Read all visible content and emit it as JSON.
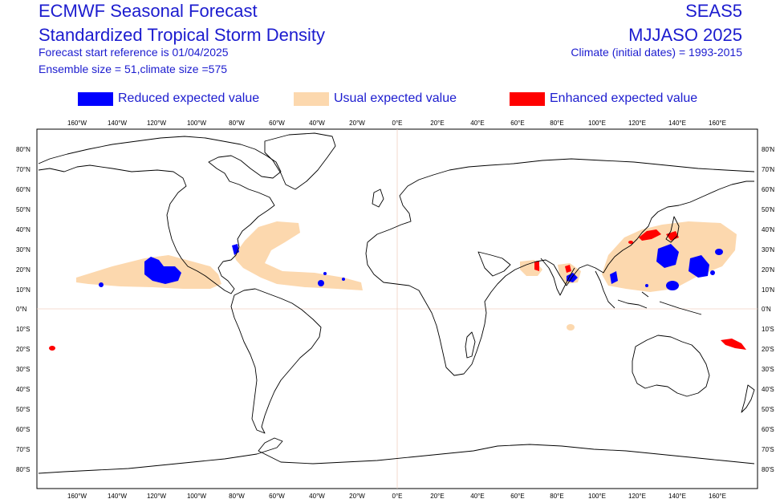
{
  "header": {
    "title_line1": "ECMWF Seasonal Forecast",
    "title_line2": "Standardized Tropical Storm Density",
    "forecast_start": "Forecast start reference is 01/04/2025",
    "ensemble": "Ensemble size = 51,climate size =575",
    "system": "SEAS5",
    "period": "MJJASO 2025",
    "climate": "Climate (initial dates) = 1993-2015"
  },
  "legend": [
    {
      "label": "Reduced expected value",
      "color": "#0000ff"
    },
    {
      "label": "Usual expected value",
      "color": "#fcd8ae"
    },
    {
      "label": "Enhanced expected value",
      "color": "#ff0000"
    }
  ],
  "axes": {
    "lon_labels": [
      "160°W",
      "140°W",
      "120°W",
      "100°W",
      "80°W",
      "60°W",
      "40°W",
      "20°W",
      "0°E",
      "20°E",
      "40°E",
      "60°E",
      "80°E",
      "100°E",
      "120°E",
      "140°E",
      "160°E"
    ],
    "lat_labels_left": [
      "80°N",
      "70°N",
      "60°N",
      "50°N",
      "40°N",
      "30°N",
      "20°N",
      "10°N",
      "0°N",
      "10°S",
      "20°S",
      "30°S",
      "40°S",
      "50°S",
      "60°S",
      "70°S",
      "80°S"
    ],
    "lat_labels_right": [
      "80'N",
      "70'N",
      "60'N",
      "50'N",
      "40'N",
      "30'N",
      "20'N",
      "10'N",
      "0'N",
      "10'S",
      "20'S",
      "30'S",
      "40'S",
      "50'S",
      "60'S",
      "70'S",
      "80'S"
    ]
  },
  "colors": {
    "reduced": "#0000ff",
    "usual": "#fcd8ae",
    "enhanced": "#ff0000",
    "coast": "#000000",
    "equator": "#f0d0c0"
  }
}
